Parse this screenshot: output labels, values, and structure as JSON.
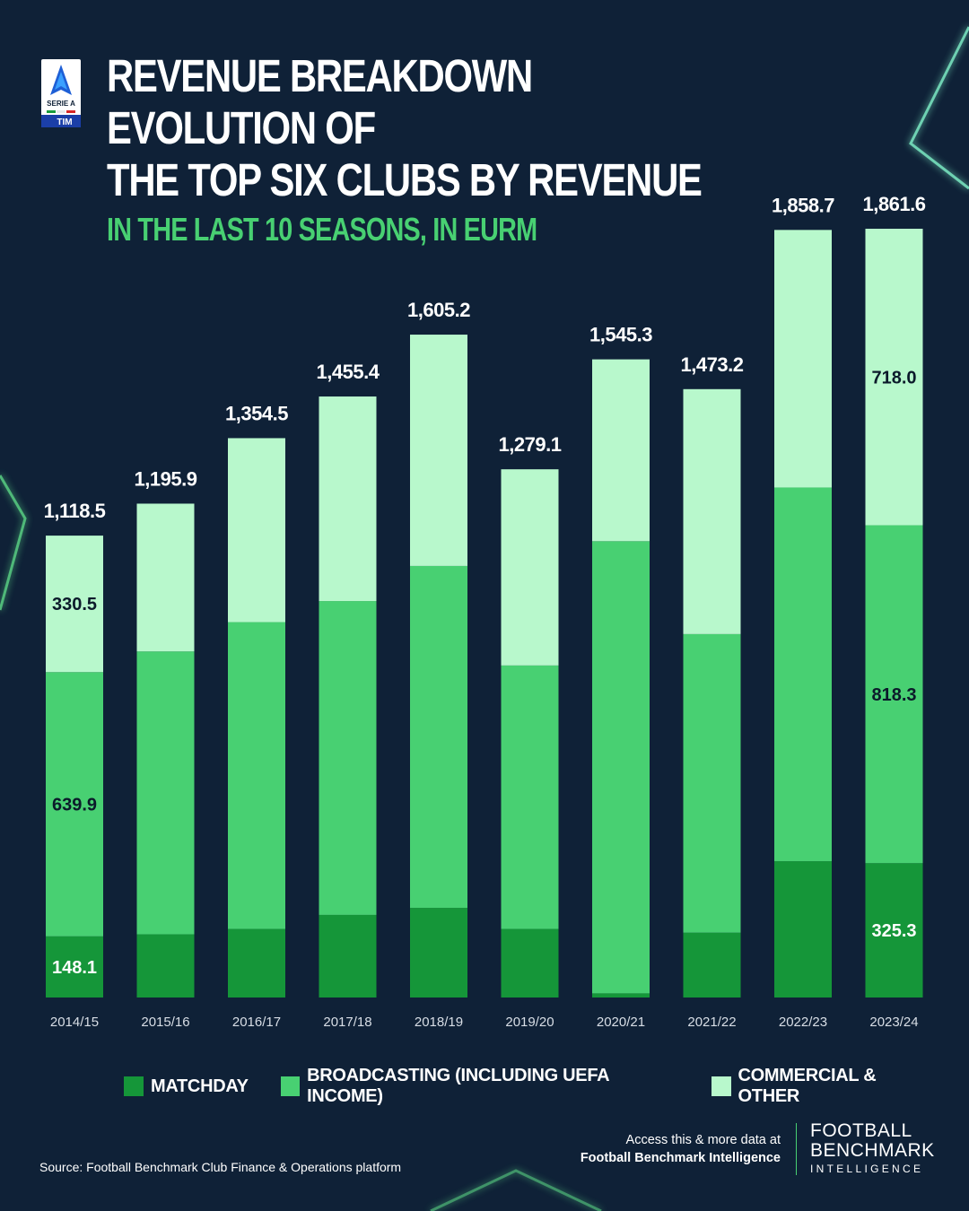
{
  "header": {
    "title_line1": "REVENUE BREAKDOWN EVOLUTION OF",
    "title_line2": "THE TOP SIX CLUBS BY REVENUE",
    "subtitle": "IN THE LAST 10 SEASONS, IN EURM"
  },
  "logo": {
    "text_top": "SERIE A",
    "text_bottom": "TIM"
  },
  "colors": {
    "background": "#0f2137",
    "matchday": "#159639",
    "broadcasting": "#48d072",
    "commercial": "#b8f8cc",
    "accent": "#48d072"
  },
  "chart_data": {
    "type": "bar",
    "stacked": true,
    "categories": [
      "2014/15",
      "2015/16",
      "2016/17",
      "2017/18",
      "2018/19",
      "2019/20",
      "2020/21",
      "2021/22",
      "2022/23",
      "2023/24"
    ],
    "totals": [
      "1,118.5",
      "1,195.9",
      "1,354.5",
      "1,455.4",
      "1,605.2",
      "1,279.1",
      "1,545.3",
      "1,473.2",
      "1,858.7",
      "1,861.6"
    ],
    "series": [
      {
        "name": "MATCHDAY",
        "values": [
          148.1,
          153,
          166,
          200,
          217,
          166,
          10,
          157,
          330,
          325.3
        ]
      },
      {
        "name": "BROADCASTING (INCLUDING UEFA INCOME)",
        "values": [
          639.9,
          685,
          743,
          760,
          828,
          638,
          1095,
          723,
          905,
          818.3
        ]
      },
      {
        "name": "COMMERCIAL & OTHER",
        "values": [
          330.5,
          357.9,
          445.5,
          495.4,
          560.2,
          475.1,
          440.3,
          593.2,
          623.7,
          718.0
        ]
      }
    ],
    "data_labels": [
      {
        "category": "2014/15",
        "series": "MATCHDAY",
        "text": "148.1"
      },
      {
        "category": "2014/15",
        "series": "BROADCASTING (INCLUDING UEFA INCOME)",
        "text": "639.9"
      },
      {
        "category": "2014/15",
        "series": "COMMERCIAL & OTHER",
        "text": "330.5"
      },
      {
        "category": "2023/24",
        "series": "MATCHDAY",
        "text": "325.3"
      },
      {
        "category": "2023/24",
        "series": "BROADCASTING (INCLUDING UEFA INCOME)",
        "text": "818.3"
      },
      {
        "category": "2023/24",
        "series": "COMMERCIAL & OTHER",
        "text": "718.0"
      }
    ],
    "ylim": [
      0,
      1861.6
    ],
    "grid": false,
    "legend_position": "bottom"
  },
  "legend": [
    {
      "label": "MATCHDAY"
    },
    {
      "label": "BROADCASTING (INCLUDING UEFA INCOME)"
    },
    {
      "label": "COMMERCIAL & OTHER"
    }
  ],
  "footer": {
    "source": "Source: Football Benchmark Club Finance & Operations platform",
    "access_line1": "Access this & more data at",
    "access_line2": "Football Benchmark Intelligence",
    "brand_line1": "FOOTBALL",
    "brand_line2": "BENCHMARK",
    "brand_line3": "INTELLIGENCE"
  }
}
